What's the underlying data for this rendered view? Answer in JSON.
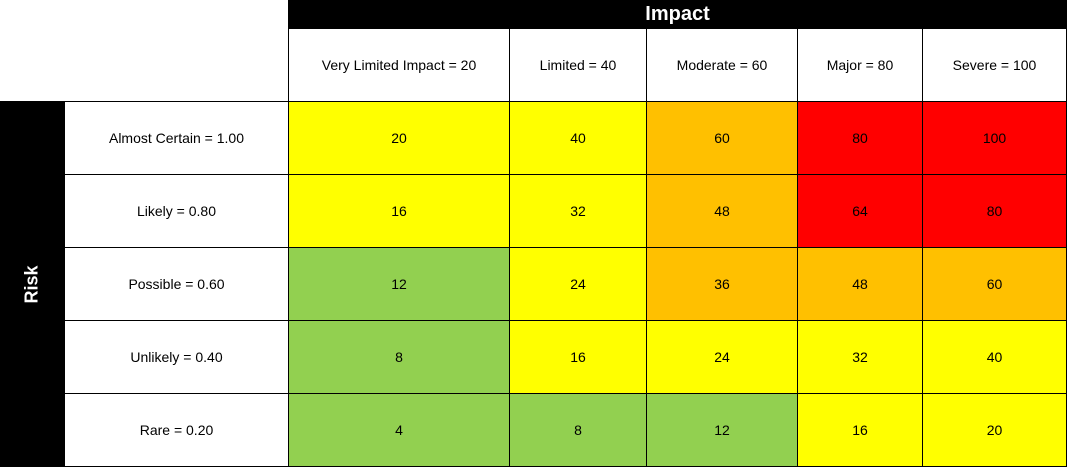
{
  "chart_data": {
    "type": "heatmap",
    "x_axis_title": "Impact",
    "y_axis_title": "Risk",
    "impact_labels": [
      "Very Limited Impact = 20",
      "Limited = 40",
      "Moderate = 60",
      "Major = 80",
      "Severe = 100"
    ],
    "risk_labels": [
      "Almost Certain = 1.00",
      "Likely = 0.80",
      "Possible = 0.60",
      "Unlikely = 0.40",
      "Rare = 0.20"
    ],
    "values": [
      [
        20,
        40,
        60,
        80,
        100
      ],
      [
        16,
        32,
        48,
        64,
        80
      ],
      [
        12,
        24,
        36,
        48,
        60
      ],
      [
        8,
        16,
        24,
        32,
        40
      ],
      [
        4,
        8,
        12,
        16,
        20
      ]
    ],
    "cell_colors": [
      [
        "#ffff00",
        "#ffff00",
        "#ffc000",
        "#ff0000",
        "#ff0000"
      ],
      [
        "#ffff00",
        "#ffff00",
        "#ffc000",
        "#ff0000",
        "#ff0000"
      ],
      [
        "#92d050",
        "#ffff00",
        "#ffc000",
        "#ffc000",
        "#ffc000"
      ],
      [
        "#92d050",
        "#ffff00",
        "#ffff00",
        "#ffff00",
        "#ffff00"
      ],
      [
        "#92d050",
        "#92d050",
        "#92d050",
        "#ffff00",
        "#ffff00"
      ]
    ]
  }
}
